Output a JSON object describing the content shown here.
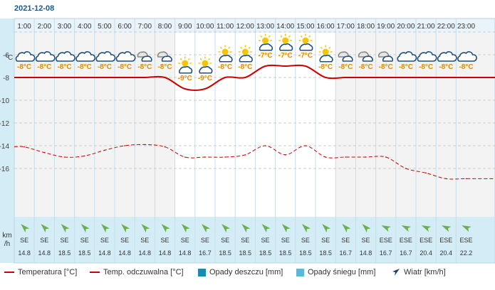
{
  "date": "2021-12-08",
  "chart_data": {
    "type": "line",
    "hours": [
      "1:00",
      "2:00",
      "3:00",
      "4:00",
      "5:00",
      "6:00",
      "7:00",
      "8:00",
      "9:00",
      "10:00",
      "11:00",
      "12:00",
      "13:00",
      "14:00",
      "15:00",
      "16:00",
      "17:00",
      "18:00",
      "19:00",
      "20:00",
      "21:00",
      "22:00",
      "23:00"
    ],
    "y_unit": "°C",
    "y_ticks": [
      -6,
      -8,
      -10,
      -12,
      -14,
      -16
    ],
    "ylim": [
      -18,
      -4
    ],
    "grid": true,
    "temperature": [
      -8,
      -8,
      -8,
      -8,
      -8,
      -8,
      -8,
      -8,
      -9,
      -9,
      -8,
      -8,
      -7,
      -7,
      -7,
      -8,
      -8,
      -8,
      -8,
      -8,
      -8,
      -8,
      -8
    ],
    "temperature_labels": [
      "-8°C",
      "-8°C",
      "-8°C",
      "-8°C",
      "-8°C",
      "-8°C",
      "-8°C",
      "-8°C",
      "-9°C",
      "-9°C",
      "-8°C",
      "-8°C",
      "-7°C",
      "-7°C",
      "-7°C",
      "-8°C",
      "-8°C",
      "-8°C",
      "-8°C",
      "-8°C",
      "-8°C",
      "-8°C",
      "-8°C"
    ],
    "feels_like": [
      -14.1,
      -14.6,
      -15,
      -14.9,
      -14.4,
      -14,
      -13.9,
      -14.1,
      -15,
      -15,
      -15,
      -14.8,
      -14,
      -14.8,
      -14,
      -15,
      -15,
      -15,
      -15,
      -16,
      -16.4,
      -16.9,
      -16.9
    ],
    "weather_icons": [
      "cloudy",
      "cloudy",
      "cloudy",
      "cloudy",
      "cloudy",
      "cloudy",
      "cloudy-snow",
      "cloudy-snow",
      "partly-sunny",
      "partly-sunny",
      "partly-sunny",
      "partly-sunny",
      "partly-sunny",
      "partly-sunny",
      "partly-sunny",
      "partly-sunny",
      "cloudy-snow",
      "cloudy-snow",
      "cloudy-snow",
      "cloudy",
      "cloudy",
      "cloudy",
      "cloudy"
    ],
    "wind_unit": "km\n/h",
    "wind_dir": [
      "SE",
      "SE",
      "SE",
      "SE",
      "SE",
      "SE",
      "SE",
      "SE",
      "SE",
      "SE",
      "SE",
      "SE",
      "SE",
      "SE",
      "SE",
      "SE",
      "SE",
      "SE",
      "ESE",
      "ESE",
      "ESE",
      "ESE",
      "ESE"
    ],
    "wind_speed": [
      "14.8",
      "14.8",
      "18.5",
      "18.5",
      "14.8",
      "14.8",
      "14.8",
      "14.8",
      "14.8",
      "16.7",
      "18.5",
      "18.5",
      "18.5",
      "18.5",
      "18.5",
      "18.5",
      "16.7",
      "14.8",
      "16.7",
      "16.7",
      "20.4",
      "20.4",
      "22.2"
    ],
    "legend": [
      {
        "label": "Temperatura [°C]",
        "color": "#cc0000",
        "kind": "line"
      },
      {
        "label": "Temp. odczuwalna [°C]",
        "color": "#cc0000",
        "kind": "line"
      },
      {
        "label": "Opady deszczu [mm]",
        "color": "#1a8ab0",
        "kind": "box"
      },
      {
        "label": "Opady śniegu [mm]",
        "color": "#5cb8d6",
        "kind": "box"
      },
      {
        "label": "Wiatr [km/h]",
        "color": "#1f3f6a",
        "kind": "arrow"
      }
    ]
  }
}
